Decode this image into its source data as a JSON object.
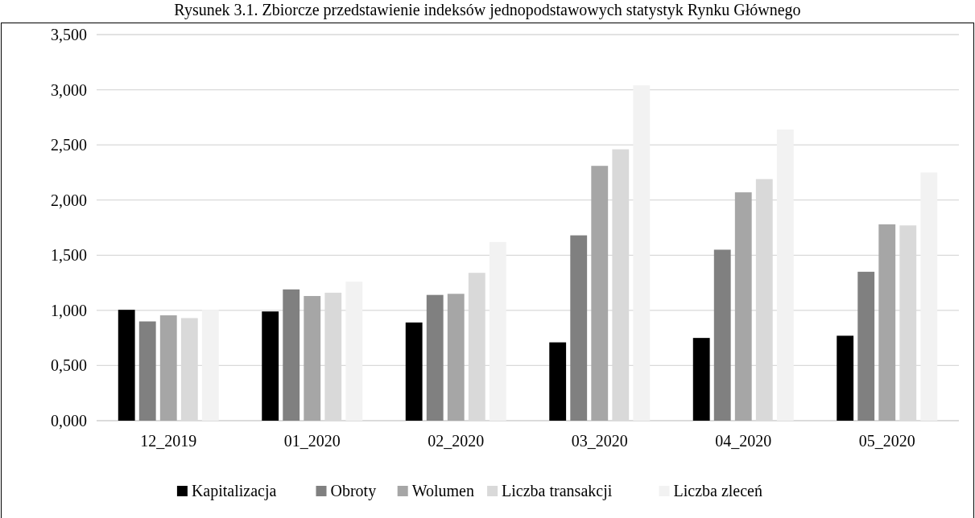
{
  "chart_data": {
    "type": "bar",
    "title": "Rysunek 3.1. Zbiorcze przedstawienie indeksów jednopodstawowych statystyk Rynku Głównego",
    "categories": [
      "12_2019",
      "01_2020",
      "02_2020",
      "03_2020",
      "04_2020",
      "05_2020"
    ],
    "series": [
      {
        "name": "Kapitalizacja",
        "color": "#000000",
        "values": [
          1.005,
          0.99,
          0.89,
          0.71,
          0.75,
          0.77
        ]
      },
      {
        "name": "Obroty",
        "color": "#808080",
        "values": [
          0.9,
          1.19,
          1.14,
          1.68,
          1.55,
          1.35
        ]
      },
      {
        "name": "Wolumen",
        "color": "#a6a6a6",
        "values": [
          0.955,
          1.13,
          1.15,
          2.31,
          2.07,
          1.78
        ]
      },
      {
        "name": "Liczba transakcji",
        "color": "#d9d9d9",
        "values": [
          0.93,
          1.16,
          1.34,
          2.46,
          2.19,
          1.77
        ]
      },
      {
        "name": "Liczba zleceń",
        "color": "#f2f2f2",
        "values": [
          1.005,
          1.26,
          1.62,
          3.04,
          2.64,
          2.25
        ]
      }
    ],
    "ylim": [
      0,
      3.5
    ],
    "yticks": [
      {
        "value": 0,
        "label": "0,000"
      },
      {
        "value": 0.5,
        "label": "0,500"
      },
      {
        "value": 1,
        "label": "1,000"
      },
      {
        "value": 1.5,
        "label": "1,500"
      },
      {
        "value": 2,
        "label": "2,000"
      },
      {
        "value": 2.5,
        "label": "2,500"
      },
      {
        "value": 3,
        "label": "3,000"
      },
      {
        "value": 3.5,
        "label": "3,500"
      }
    ],
    "grid": "y",
    "legend": "bottom"
  }
}
